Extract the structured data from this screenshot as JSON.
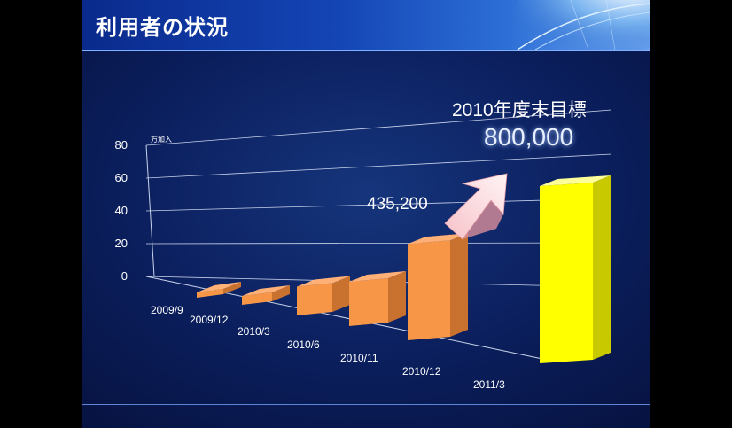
{
  "header": {
    "title": "利用者の状況"
  },
  "colors": {
    "bar": "#f79646",
    "target_bar": "#ffff00",
    "background": "#0b1f5e"
  },
  "chart_data": {
    "type": "bar",
    "title": "",
    "y_unit": "万加入",
    "ylim": [
      0,
      80
    ],
    "y_ticks": [
      0,
      20,
      40,
      60,
      80
    ],
    "grid": true,
    "categories": [
      "2009/9",
      "2009/12",
      "2010/3",
      "2010/6",
      "2010/11",
      "2010/12",
      "2011/3"
    ],
    "values": [
      1,
      4,
      13,
      20,
      43.52,
      null,
      80
    ],
    "annotations": {
      "current_value": "435,200",
      "target_label": "2010年度末目標",
      "target_value": "800,000"
    }
  }
}
